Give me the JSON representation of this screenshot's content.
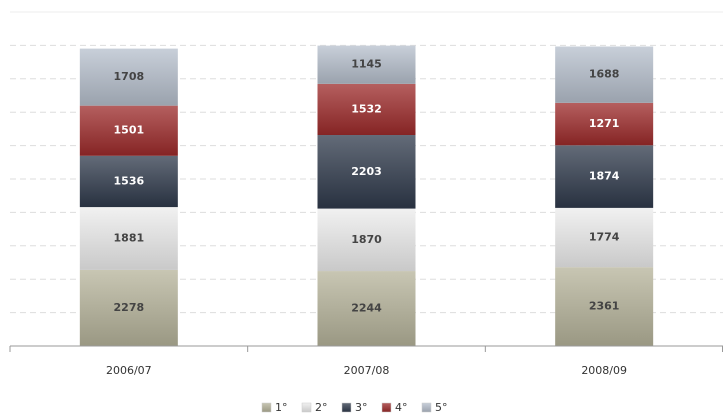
{
  "chart_data": {
    "type": "stacked_bar",
    "categories": [
      "2006/07",
      "2007/08",
      "2008/09"
    ],
    "series": [
      {
        "name": "1°",
        "color": "#b5b39a",
        "values": [
          2278,
          2244,
          2361
        ]
      },
      {
        "name": "2°",
        "color": "#ececec",
        "values": [
          1881,
          1870,
          1774
        ]
      },
      {
        "name": "3°",
        "color": "#2f3a4b",
        "values": [
          1536,
          2203,
          1874
        ]
      },
      {
        "name": "4°",
        "color": "#9c2a2a",
        "values": [
          1501,
          1532,
          1271
        ]
      },
      {
        "name": "5°",
        "color": "#b5bfcc",
        "values": [
          1708,
          1145,
          1688
        ]
      }
    ],
    "ylim": [
      0,
      10000
    ],
    "yticks": [
      0,
      1000,
      2000,
      3000,
      4000,
      5000,
      6000,
      7000,
      8000,
      9000,
      10000
    ],
    "grid": true
  }
}
